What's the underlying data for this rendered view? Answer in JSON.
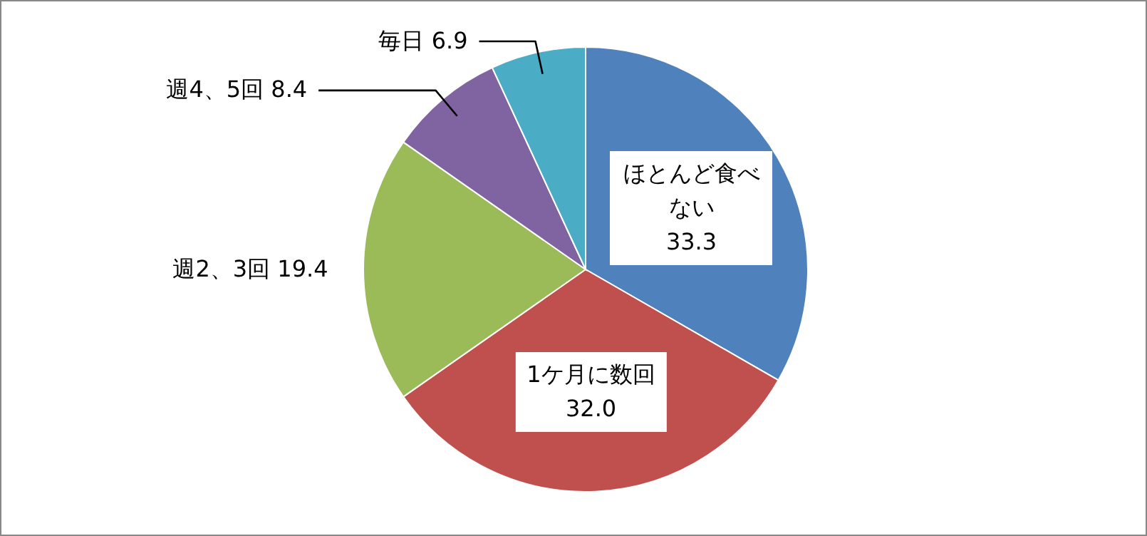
{
  "chart_data": {
    "type": "pie",
    "categories": [
      "ほとんど食べない",
      "1ケ月に数回",
      "週2、3回",
      "週4、5回",
      "毎日"
    ],
    "values": [
      33.3,
      32.0,
      19.4,
      8.4,
      6.9
    ],
    "value_labels": [
      "33.3",
      "32.0",
      "19.4",
      "8.4",
      "6.9"
    ],
    "colors": [
      "#4f81bd",
      "#c0504d",
      "#9bbb59",
      "#8064a2",
      "#4bacc6"
    ]
  }
}
